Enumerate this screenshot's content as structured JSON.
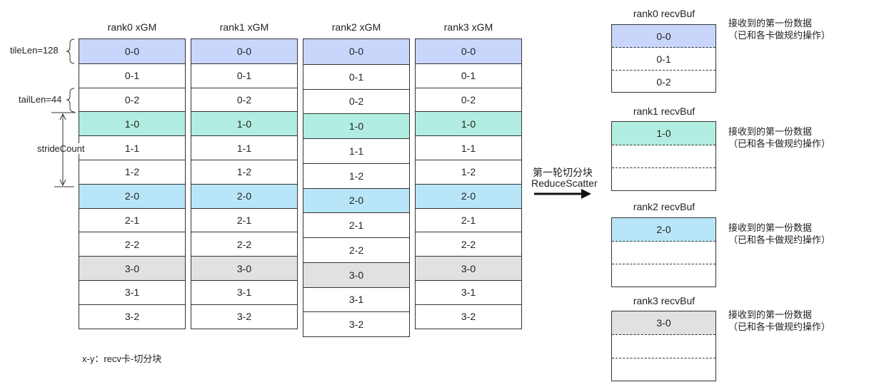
{
  "columns": [
    {
      "title": "rank0 xGM",
      "cells": [
        "0-0",
        "0-1",
        "0-2",
        "1-0",
        "1-1",
        "1-2",
        "2-0",
        "2-1",
        "2-2",
        "3-0",
        "3-1",
        "3-2"
      ]
    },
    {
      "title": "rank1 xGM",
      "cells": [
        "0-0",
        "0-1",
        "0-2",
        "1-0",
        "1-1",
        "1-2",
        "2-0",
        "2-1",
        "2-2",
        "3-0",
        "3-1",
        "3-2"
      ]
    },
    {
      "title": "rank2 xGM",
      "cells": [
        "0-0",
        "0-1",
        "0-2",
        "1-0",
        "1-1",
        "1-2",
        "2-0",
        "2-1",
        "2-2",
        "3-0",
        "3-1",
        "3-2"
      ]
    },
    {
      "title": "rank3 xGM",
      "cells": [
        "0-0",
        "0-1",
        "0-2",
        "1-0",
        "1-1",
        "1-2",
        "2-0",
        "2-1",
        "2-2",
        "3-0",
        "3-1",
        "3-2"
      ]
    }
  ],
  "annotations": {
    "tile_len": "tileLen=128",
    "tail_len": "tailLen=44",
    "stride_count": "strideCount",
    "legend": "x-y：recv卡-切分块"
  },
  "arrow": {
    "line1": "第一轮切分块",
    "line2": "ReduceScatter"
  },
  "buffers": [
    {
      "title": "rank0 recvBuf",
      "slots": [
        "0-0",
        "0-1",
        "0-2"
      ],
      "color": "#c9d6fb"
    },
    {
      "title": "rank1 recvBuf",
      "slots": [
        "1-0",
        "",
        ""
      ],
      "color": "#b1ede0"
    },
    {
      "title": "rank2 recvBuf",
      "slots": [
        "2-0",
        "",
        ""
      ],
      "color": "#b8e6f8"
    },
    {
      "title": "rank3 recvBuf",
      "slots": [
        "3-0",
        "",
        ""
      ],
      "color": "#e0e1e3"
    }
  ],
  "note": {
    "line1": "接收到的第一份数据",
    "line2": "（已和各卡做规约操作）"
  },
  "colors": {
    "group0": "#c9d6fb",
    "group1": "#b1ede0",
    "group2": "#b8e6f8",
    "group3": "#e0e1e3"
  }
}
